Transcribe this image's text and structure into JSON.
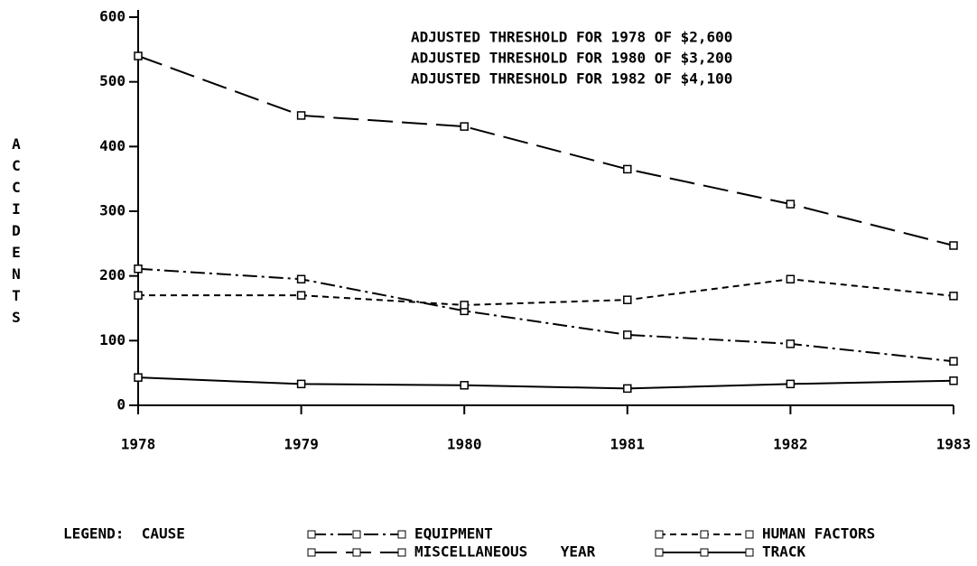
{
  "chart_data": {
    "type": "line",
    "annotations": [
      "ADJUSTED THRESHOLD FOR 1978 OF $2,600",
      "ADJUSTED THRESHOLD FOR 1980 OF $3,200",
      "ADJUSTED THRESHOLD FOR 1982 OF $4,100"
    ],
    "y_label": "ACCIDENTS",
    "x_label": "YEAR",
    "legend_title": "LEGEND:  CAUSE",
    "x": [
      1978,
      1979,
      1980,
      1981,
      1982,
      1983
    ],
    "xlim": [
      1978,
      1983
    ],
    "xticks": [
      1978,
      1979,
      1980,
      1981,
      1982,
      1983
    ],
    "ylim": [
      0,
      600
    ],
    "yticks": [
      0,
      100,
      200,
      300,
      400,
      500,
      600
    ],
    "series": [
      {
        "name": "EQUIPMENT",
        "color": "#000000",
        "style": "dash-dot",
        "values": [
          211,
          195,
          146,
          109,
          95,
          68
        ]
      },
      {
        "name": "HUMAN FACTORS",
        "color": "#000000",
        "style": "short-dash",
        "values": [
          170,
          170,
          155,
          163,
          195,
          169
        ]
      },
      {
        "name": "MISCELLANEOUS",
        "color": "#000000",
        "style": "long-dash",
        "values": [
          540,
          448,
          431,
          365,
          311,
          247
        ]
      },
      {
        "name": "TRACK",
        "color": "#000000",
        "style": "solid",
        "values": [
          43,
          33,
          31,
          26,
          33,
          38
        ]
      }
    ]
  }
}
